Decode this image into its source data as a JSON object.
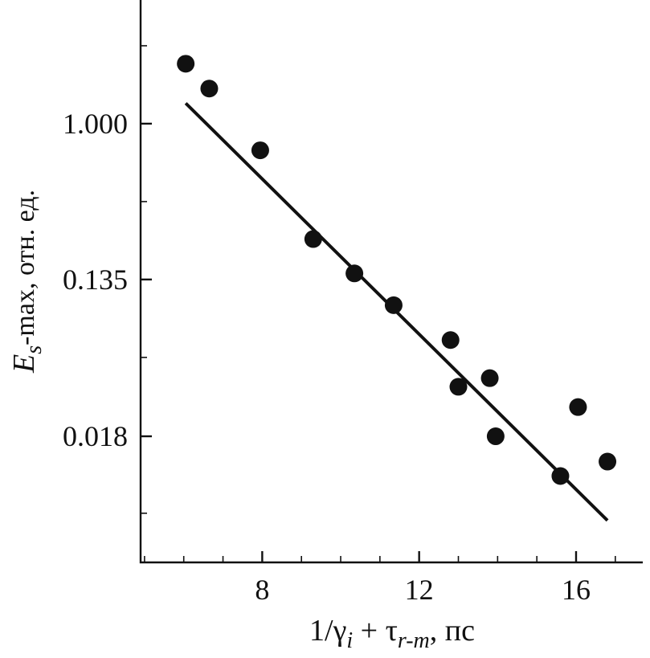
{
  "chart_data": {
    "type": "scatter",
    "xlabel": "1/γi + τr-m, пс",
    "xlabel_parts": {
      "base": "1/γ",
      "sub1": "i",
      "mid": " + τ",
      "sub2": "r-m",
      "tail": ", пс"
    },
    "ylabel": "Es-max, отн. ед.",
    "ylabel_parts": {
      "base": "E",
      "sub": "s",
      "tail": "-max, отн. ед."
    },
    "x_ticks": [
      "8",
      "12",
      "16"
    ],
    "y_ticks": [
      "1.000",
      "0.135",
      "0.018"
    ],
    "xlim": [
      4.9,
      17.7
    ],
    "ylim": [
      0.00356,
      4.9
    ],
    "y_scale": "log",
    "grid": false,
    "series": [
      {
        "x": [
          6.05,
          6.65,
          7.95,
          9.3,
          10.35,
          11.35,
          12.8,
          13.0,
          13.8,
          13.95,
          15.6,
          16.05,
          16.8
        ],
        "values": [
          2.16,
          1.57,
          0.71,
          0.227,
          0.146,
          0.097,
          0.062,
          0.034,
          0.038,
          0.018,
          0.0108,
          0.0262,
          0.013
        ]
      }
    ],
    "fit_line": {
      "x": [
        6.05,
        16.8
      ],
      "y": [
        1.3,
        0.0061
      ]
    }
  }
}
